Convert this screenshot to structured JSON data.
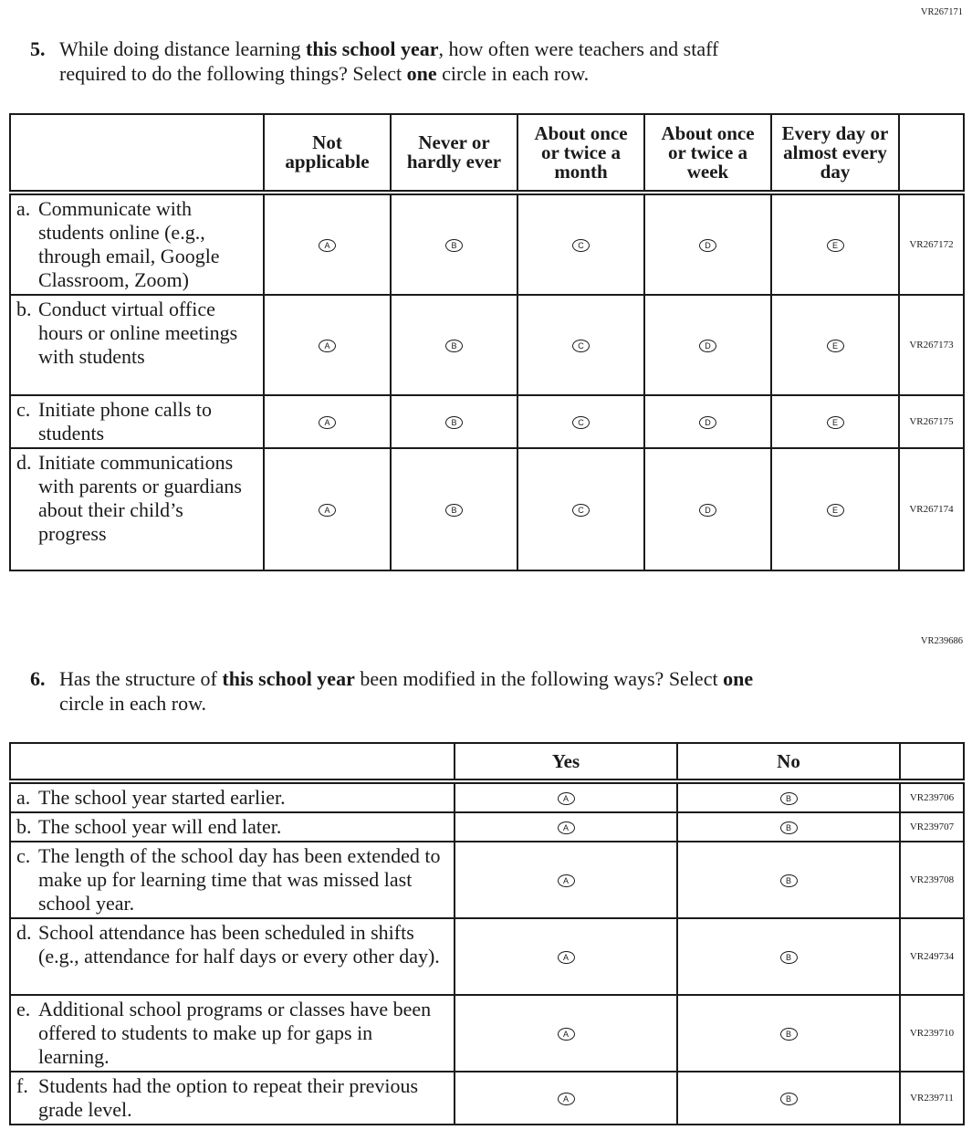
{
  "q5": {
    "id": "VR267171",
    "number": "5.",
    "text_1": "While doing distance learning ",
    "bold_1": "this school year",
    "text_2": ", how often were teachers and staff",
    "text_3": "required to do the following things? Select ",
    "bold_2": "one",
    "text_4": " circle in each row.",
    "columns": [
      "Not applicable",
      "Never or hardly ever",
      "About once or twice a month",
      "About once or twice a week",
      "Every day or almost every day"
    ],
    "rows": [
      {
        "letter": "a.",
        "text": "Communicate with students online (e.g., through email, Google Classroom, Zoom)",
        "options": [
          "A",
          "B",
          "C",
          "D",
          "E"
        ],
        "code": "VR267172"
      },
      {
        "letter": "b.",
        "text": "Conduct virtual office hours or online meetings with students",
        "options": [
          "A",
          "B",
          "C",
          "D",
          "E"
        ],
        "code": "VR267173"
      },
      {
        "letter": "c.",
        "text": "Initiate phone calls to students",
        "options": [
          "A",
          "B",
          "C",
          "D",
          "E"
        ],
        "code": "VR267175"
      },
      {
        "letter": "d.",
        "text": "Initiate communications with parents or guardians about their child’s progress",
        "options": [
          "A",
          "B",
          "C",
          "D",
          "E"
        ],
        "code": "VR267174"
      }
    ]
  },
  "q6": {
    "id": "VR239686",
    "number": "6.",
    "text_1": "Has the structure of ",
    "bold_1": "this school year",
    "text_2": " been modified in the following ways? Select ",
    "bold_2": "one",
    "text_3": "circle in each row.",
    "columns": [
      "Yes",
      "No"
    ],
    "rows": [
      {
        "letter": "a.",
        "text": "The school year started earlier.",
        "options": [
          "A",
          "B"
        ],
        "code": "VR239706"
      },
      {
        "letter": "b.",
        "text": "The school year will end later.",
        "options": [
          "A",
          "B"
        ],
        "code": "VR239707"
      },
      {
        "letter": "c.",
        "text": "The length of the school day has been extended to make up for learning time that was missed last school year.",
        "options": [
          "A",
          "B"
        ],
        "code": "VR239708"
      },
      {
        "letter": "d.",
        "text": "School attendance has been scheduled in shifts (e.g., attendance for half days or every other day).",
        "options": [
          "A",
          "B"
        ],
        "code": "VR249734"
      },
      {
        "letter": "e.",
        "text": "Additional school programs or classes have been offered to students to make up for gaps in learning.",
        "options": [
          "A",
          "B"
        ],
        "code": "VR239710"
      },
      {
        "letter": "f.",
        "text": "Students had the option to repeat their previous grade level.",
        "options": [
          "A",
          "B"
        ],
        "code": "VR239711"
      }
    ]
  }
}
